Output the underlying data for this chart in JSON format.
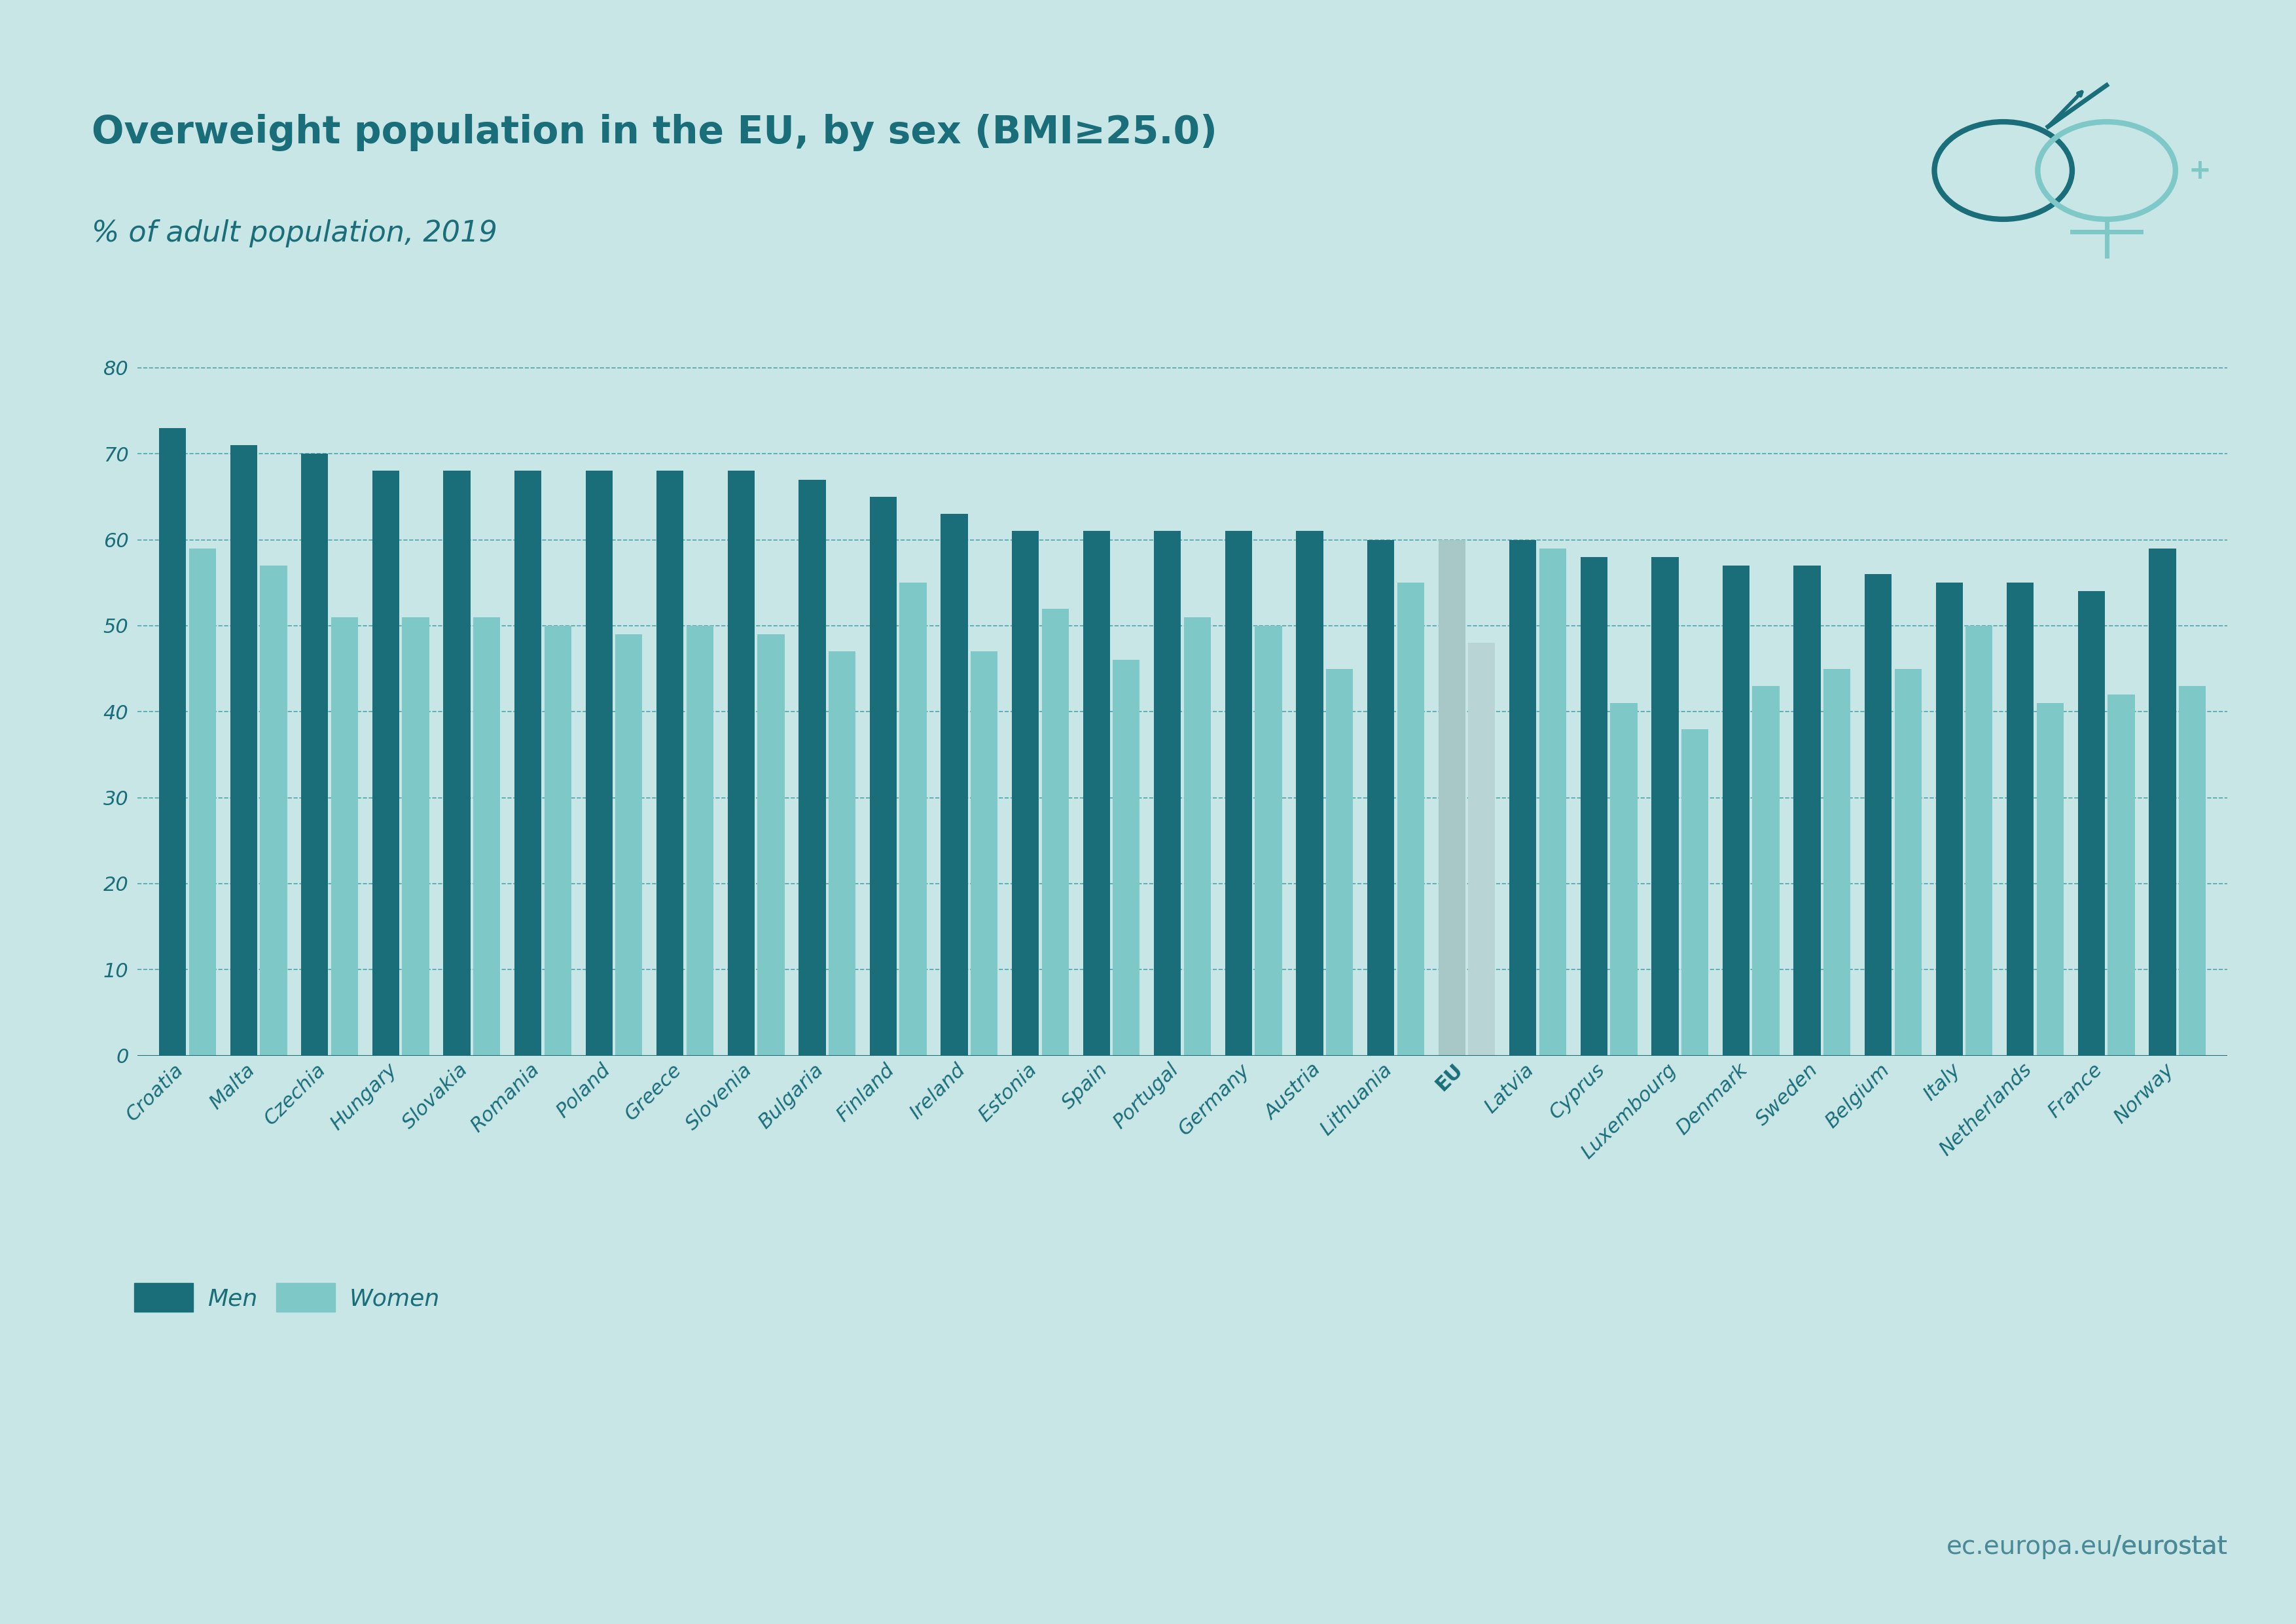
{
  "title": "Overweight population in the EU, by sex (BMI≥25.0)",
  "subtitle": "% of adult population, 2019",
  "background_color": "#c8e6e6",
  "bar_color_men": "#1a6e7a",
  "bar_color_women": "#7ec8c8",
  "bar_color_eu_men": "#b0c8c8",
  "bar_color_eu_women": "#a0bcbc",
  "title_color": "#1a6e7a",
  "axis_color": "#1a6e7a",
  "grid_color": "#1a8a96",
  "text_color": "#1a6e7a",
  "categories": [
    "Croatia",
    "Malta",
    "Czechia",
    "Hungary",
    "Slovakia",
    "Romania",
    "Poland",
    "Greece",
    "Slovenia",
    "Bulgaria",
    "Finland",
    "Ireland",
    "Estonia",
    "Spain",
    "Portugal",
    "Germany",
    "Austria",
    "Lithuania",
    "EU",
    "Latvia",
    "Cyprus",
    "Luxembourg",
    "Denmark",
    "Sweden",
    "Belgium",
    "Italy",
    "Netherlands",
    "France",
    "Norway"
  ],
  "men": [
    73,
    71,
    70,
    68,
    68,
    68,
    68,
    68,
    68,
    67,
    65,
    63,
    61,
    61,
    61,
    61,
    61,
    60,
    60,
    60,
    58,
    58,
    57,
    57,
    56,
    55,
    55,
    54,
    59
  ],
  "women": [
    59,
    57,
    51,
    51,
    51,
    50,
    49,
    50,
    49,
    47,
    55,
    47,
    52,
    46,
    51,
    50,
    45,
    55,
    48,
    59,
    41,
    38,
    43,
    45,
    45,
    50,
    41,
    42,
    43
  ],
  "eu_index": 18,
  "ylim": [
    0,
    85
  ],
  "yticks": [
    0,
    10,
    20,
    30,
    40,
    50,
    60,
    70,
    80
  ],
  "legend_men": "Men",
  "legend_women": "Women",
  "watermark": "ec.europa.eu/eurostat"
}
